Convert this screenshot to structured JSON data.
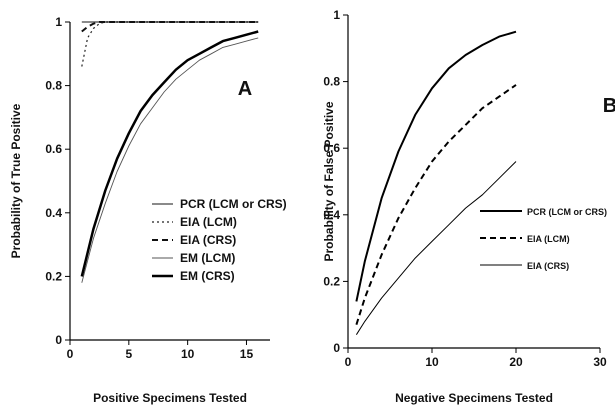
{
  "chart_data": [
    {
      "type": "line",
      "panel_label": "A",
      "xlabel": "Positive Specimens Tested",
      "ylabel": "Probability of True Positive",
      "xlim": [
        0,
        17
      ],
      "ylim": [
        0,
        1
      ],
      "xticks": [
        0,
        5,
        10,
        15
      ],
      "yticks": [
        0,
        0.2,
        0.4,
        0.6,
        0.8,
        1
      ],
      "ytick_labels": [
        "0",
        "0.2",
        "0.4",
        "0.6",
        "0.8",
        "1"
      ],
      "grid": false,
      "legend_position": "lower-right",
      "series": [
        {
          "name": "PCR (LCM or CRS)",
          "style": "solid",
          "color": "#8a8a8a",
          "width": 2,
          "x": [
            1,
            2,
            3,
            4,
            5,
            6,
            7,
            8,
            9,
            10,
            11,
            12,
            13,
            14,
            15,
            16
          ],
          "y": [
            1,
            1,
            1,
            1,
            1,
            1,
            1,
            1,
            1,
            1,
            1,
            1,
            1,
            1,
            1,
            1
          ]
        },
        {
          "name": "EIA (LCM)",
          "style": "dotted",
          "color": "#222222",
          "width": 1.2,
          "x": [
            1,
            1.5,
            2,
            2.5,
            3,
            4,
            5,
            8,
            12,
            16
          ],
          "y": [
            0.86,
            0.95,
            0.98,
            0.995,
            1,
            1,
            1,
            1,
            1,
            1
          ]
        },
        {
          "name": "EIA (CRS)",
          "style": "dashed",
          "color": "#111111",
          "width": 2,
          "x": [
            1,
            1.5,
            2,
            2.5,
            3,
            4,
            5,
            8,
            12,
            16
          ],
          "y": [
            0.97,
            0.985,
            0.995,
            1,
            1,
            1,
            1,
            1,
            1,
            1
          ]
        },
        {
          "name": "EM (LCM)",
          "style": "solid",
          "color": "#555555",
          "width": 0.9,
          "x": [
            1,
            2,
            3,
            4,
            5,
            6,
            7,
            8,
            9,
            10,
            11,
            12,
            13,
            14,
            15,
            16
          ],
          "y": [
            0.18,
            0.32,
            0.43,
            0.53,
            0.61,
            0.68,
            0.73,
            0.78,
            0.82,
            0.85,
            0.88,
            0.9,
            0.92,
            0.93,
            0.94,
            0.95
          ]
        },
        {
          "name": "EM (CRS)",
          "style": "solid",
          "color": "#000000",
          "width": 2.5,
          "x": [
            1,
            2,
            3,
            4,
            5,
            6,
            7,
            8,
            9,
            10,
            11,
            12,
            13,
            14,
            15,
            16
          ],
          "y": [
            0.2,
            0.35,
            0.47,
            0.57,
            0.65,
            0.72,
            0.77,
            0.81,
            0.85,
            0.88,
            0.9,
            0.92,
            0.94,
            0.95,
            0.96,
            0.97
          ]
        }
      ]
    },
    {
      "type": "line",
      "panel_label": "B",
      "xlabel": "Negative Specimens Tested",
      "ylabel": "Probability of False Positive",
      "xlim": [
        0,
        30
      ],
      "ylim": [
        0,
        1
      ],
      "xticks": [
        0,
        10,
        20,
        30
      ],
      "yticks": [
        0,
        0.2,
        0.4,
        0.6,
        0.8,
        1
      ],
      "ytick_labels": [
        "0",
        "0.2",
        "0.4",
        "0.6",
        "0.8",
        "1"
      ],
      "grid": false,
      "legend_position": "right",
      "series": [
        {
          "name": "PCR (LCM or CRS)",
          "style": "solid",
          "color": "#000000",
          "width": 2,
          "x": [
            1,
            2,
            4,
            6,
            8,
            10,
            12,
            14,
            16,
            18,
            20
          ],
          "y": [
            0.14,
            0.26,
            0.45,
            0.59,
            0.7,
            0.78,
            0.84,
            0.88,
            0.91,
            0.935,
            0.95
          ]
        },
        {
          "name": "EIA (LCM)",
          "style": "dashed",
          "color": "#000000",
          "width": 2,
          "x": [
            1,
            2,
            4,
            6,
            8,
            10,
            12,
            14,
            16,
            18,
            20
          ],
          "y": [
            0.07,
            0.15,
            0.28,
            0.39,
            0.48,
            0.56,
            0.62,
            0.67,
            0.72,
            0.755,
            0.79
          ]
        },
        {
          "name": "EIA (CRS)",
          "style": "solid",
          "color": "#000000",
          "width": 1,
          "x": [
            1,
            2,
            4,
            6,
            8,
            10,
            12,
            14,
            16,
            18,
            20
          ],
          "y": [
            0.04,
            0.08,
            0.15,
            0.21,
            0.27,
            0.32,
            0.37,
            0.42,
            0.46,
            0.51,
            0.56
          ]
        }
      ]
    }
  ]
}
